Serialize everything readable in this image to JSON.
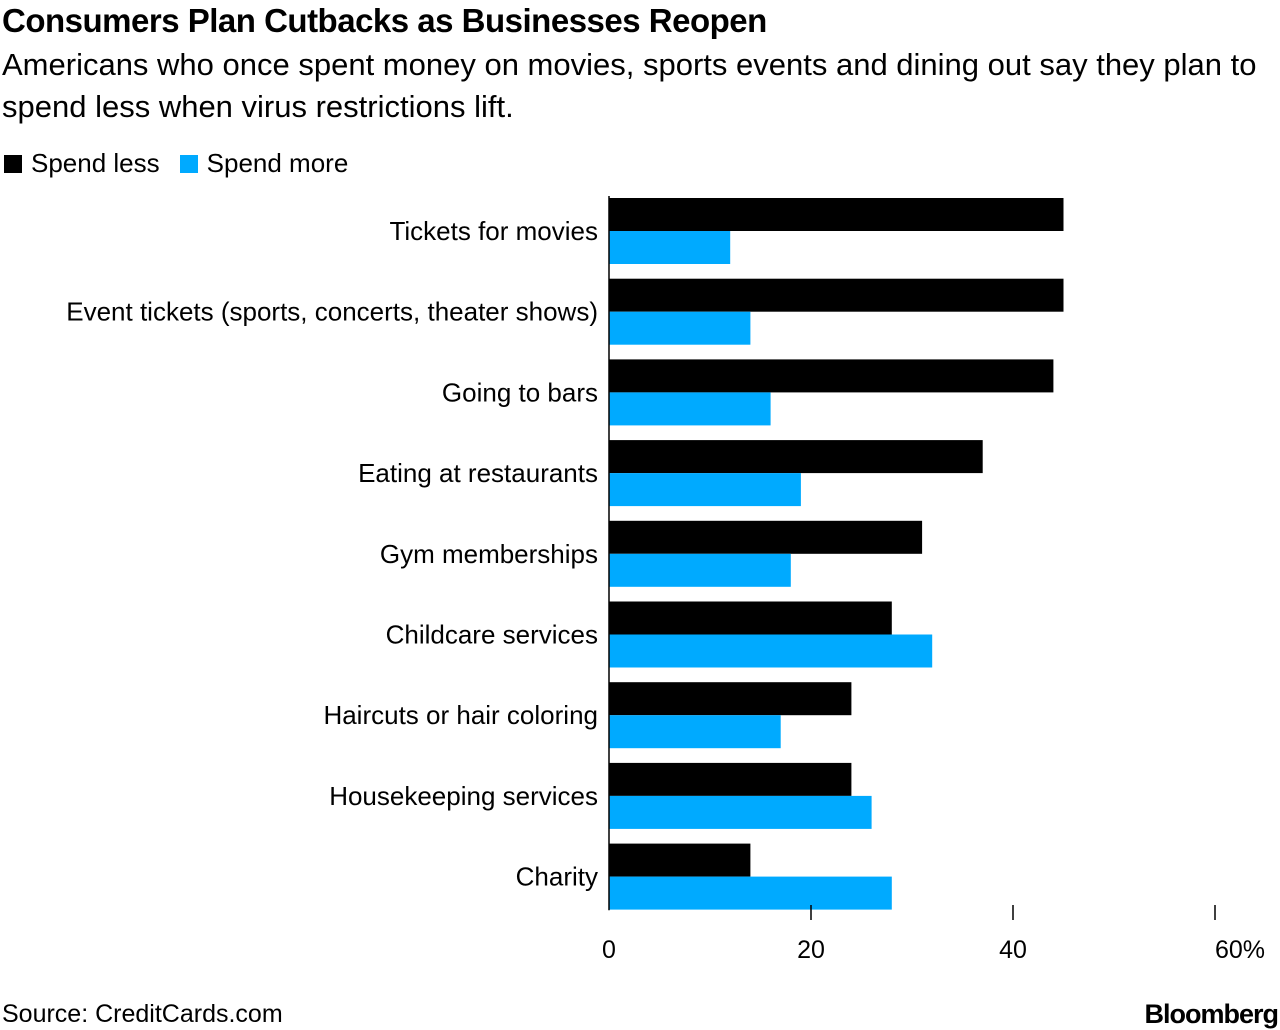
{
  "title": "Consumers Plan Cutbacks as Businesses Reopen",
  "subtitle": "Americans who once spent money on movies, sports events and dining out say they plan to spend less when virus restrictions lift.",
  "legend": [
    {
      "label": "Spend less",
      "color": "#000000"
    },
    {
      "label": "Spend more",
      "color": "#00aaff"
    }
  ],
  "source": "Source: CreditCards.com",
  "brand": "Bloomberg",
  "chart_data": {
    "type": "bar",
    "orientation": "horizontal",
    "categories": [
      "Tickets for movies",
      "Event tickets (sports, concerts, theater shows)",
      "Going to bars",
      "Eating at restaurants",
      "Gym memberships",
      "Childcare services",
      "Haircuts or hair coloring",
      "Housekeeping services",
      "Charity"
    ],
    "series": [
      {
        "name": "Spend less",
        "color": "#000000",
        "values": [
          45,
          45,
          44,
          37,
          31,
          28,
          24,
          24,
          14
        ]
      },
      {
        "name": "Spend more",
        "color": "#00aaff",
        "values": [
          12,
          14,
          16,
          19,
          18,
          32,
          17,
          26,
          28
        ]
      }
    ],
    "xlim": [
      0,
      60
    ],
    "ticks": [
      0,
      20,
      40,
      60
    ],
    "tick_labels": [
      "0",
      "20",
      "40",
      "60%"
    ],
    "legend_position": "top-left",
    "grid": false
  }
}
